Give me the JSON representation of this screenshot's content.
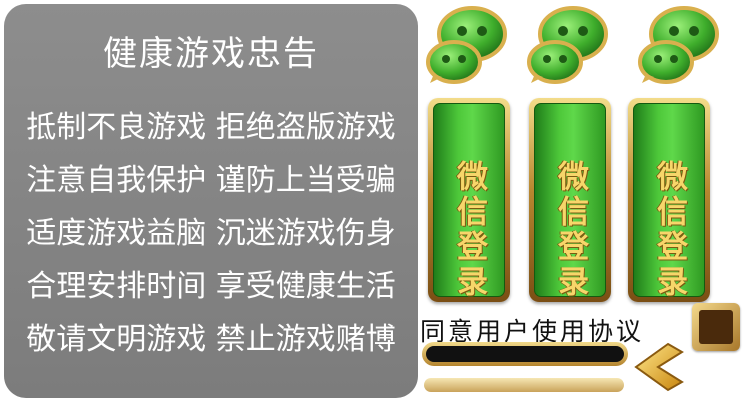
{
  "notice": {
    "title": "健康游戏忠告",
    "lines": [
      "抵制不良游戏 拒绝盗版游戏",
      "注意自我保护 谨防上当受骗",
      "适度游戏益脑 沉迷游戏伤身",
      "合理安排时间 享受健康生活",
      "敬请文明游戏 禁止游戏赌博"
    ]
  },
  "login_buttons": [
    {
      "label": "微信登录",
      "icon": "wechat-icon",
      "state": "normal"
    },
    {
      "label": "微信登录",
      "icon": "wechat-icon",
      "state": "hover"
    },
    {
      "label": "微信登录",
      "icon": "wechat-icon",
      "state": "pressed"
    }
  ],
  "agreement": {
    "text": "同意用户使用协议",
    "checked": false
  },
  "colors": {
    "panel": "#858585",
    "button_green": "#4ec83a",
    "gold": "#d4a84a",
    "label_gold": "#f7d66a"
  }
}
